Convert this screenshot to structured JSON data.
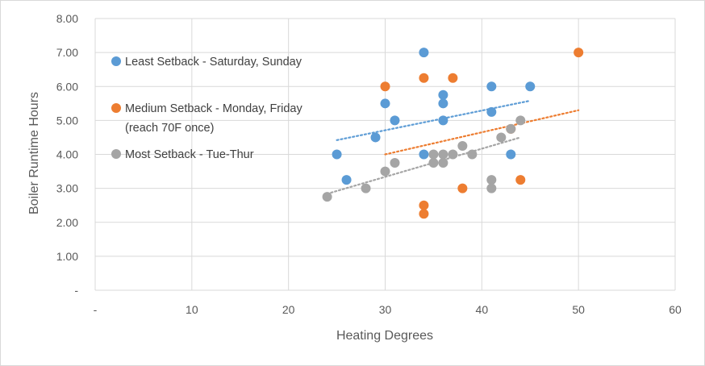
{
  "chart_data": {
    "type": "scatter",
    "xlabel": "Heating Degrees",
    "ylabel": "Boiler Runtime Hours",
    "xlim": [
      0,
      60
    ],
    "ylim": [
      0,
      8
    ],
    "x_ticks": [
      {
        "value": 0,
        "label": "-"
      },
      {
        "value": 10,
        "label": "10"
      },
      {
        "value": 20,
        "label": "20"
      },
      {
        "value": 30,
        "label": "30"
      },
      {
        "value": 40,
        "label": "40"
      },
      {
        "value": 50,
        "label": "50"
      },
      {
        "value": 60,
        "label": "60"
      }
    ],
    "y_ticks": [
      {
        "value": 0,
        "label": "-"
      },
      {
        "value": 1,
        "label": "1.00"
      },
      {
        "value": 2,
        "label": "2.00"
      },
      {
        "value": 3,
        "label": "3.00"
      },
      {
        "value": 4,
        "label": "4.00"
      },
      {
        "value": 5,
        "label": "5.00"
      },
      {
        "value": 6,
        "label": "6.00"
      },
      {
        "value": 7,
        "label": "7.00"
      },
      {
        "value": 8,
        "label": "8.00"
      }
    ],
    "grid": true,
    "legend_position": "top-left",
    "series": [
      {
        "name": "Least Setback - Saturday, Sunday",
        "color": "#5b9bd5",
        "points": [
          [
            25,
            4.0
          ],
          [
            26,
            3.25
          ],
          [
            29,
            4.5
          ],
          [
            30,
            5.5
          ],
          [
            31,
            5.0
          ],
          [
            34,
            7.0
          ],
          [
            34,
            4.0
          ],
          [
            36,
            5.75
          ],
          [
            36,
            5.5
          ],
          [
            36,
            5.0
          ],
          [
            41,
            6.0
          ],
          [
            41,
            5.25
          ],
          [
            43,
            4.0
          ],
          [
            45,
            6.0
          ]
        ],
        "trendline": [
          [
            25,
            4.42
          ],
          [
            45,
            5.58
          ]
        ]
      },
      {
        "name": "Medium Setback - Monday, Friday",
        "name_line2": "(reach 70F once)",
        "color": "#ed7d31",
        "points": [
          [
            30,
            6.0
          ],
          [
            34,
            6.25
          ],
          [
            34,
            2.5
          ],
          [
            34,
            2.25
          ],
          [
            37,
            6.25
          ],
          [
            38,
            3.0
          ],
          [
            43,
            4.75
          ],
          [
            44,
            3.25
          ],
          [
            50,
            7.0
          ]
        ],
        "trendline": [
          [
            30,
            4.0
          ],
          [
            50,
            5.3
          ]
        ]
      },
      {
        "name": "Most Setback - Tue-Thur",
        "color": "#a5a5a5",
        "points": [
          [
            24,
            2.75
          ],
          [
            28,
            3.0
          ],
          [
            30,
            3.5
          ],
          [
            31,
            3.75
          ],
          [
            35,
            4.0
          ],
          [
            35,
            3.75
          ],
          [
            36,
            4.0
          ],
          [
            36,
            3.75
          ],
          [
            37,
            4.0
          ],
          [
            38,
            4.25
          ],
          [
            39,
            4.0
          ],
          [
            41,
            3.25
          ],
          [
            41,
            3.0
          ],
          [
            42,
            4.5
          ],
          [
            43,
            4.75
          ],
          [
            44,
            5.0
          ]
        ],
        "trendline": [
          [
            24,
            2.84
          ],
          [
            44,
            4.5
          ]
        ]
      }
    ]
  }
}
